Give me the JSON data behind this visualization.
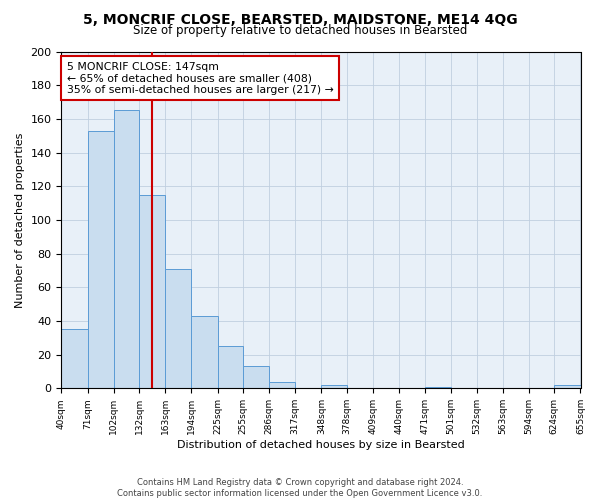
{
  "title": "5, MONCRIF CLOSE, BEARSTED, MAIDSTONE, ME14 4QG",
  "subtitle": "Size of property relative to detached houses in Bearsted",
  "xlabel": "Distribution of detached houses by size in Bearsted",
  "ylabel": "Number of detached properties",
  "bin_edges": [
    40,
    71,
    102,
    132,
    163,
    194,
    225,
    255,
    286,
    317,
    348,
    378,
    409,
    440,
    471,
    501,
    532,
    563,
    594,
    624,
    655
  ],
  "bin_heights": [
    35,
    153,
    165,
    115,
    71,
    43,
    25,
    13,
    4,
    0,
    2,
    0,
    0,
    0,
    1,
    0,
    0,
    0,
    0,
    2
  ],
  "bar_color": "#c9ddef",
  "bar_edge_color": "#5b9bd5",
  "vline_color": "#cc0000",
  "vline_x": 147,
  "annotation_text": "5 MONCRIF CLOSE: 147sqm\n← 65% of detached houses are smaller (408)\n35% of semi-detached houses are larger (217) →",
  "annotation_box_color": "#ffffff",
  "annotation_box_edge_color": "#cc0000",
  "ylim": [
    0,
    200
  ],
  "yticks": [
    0,
    20,
    40,
    60,
    80,
    100,
    120,
    140,
    160,
    180,
    200
  ],
  "tick_labels": [
    "40sqm",
    "71sqm",
    "102sqm",
    "132sqm",
    "163sqm",
    "194sqm",
    "225sqm",
    "255sqm",
    "286sqm",
    "317sqm",
    "348sqm",
    "378sqm",
    "409sqm",
    "440sqm",
    "471sqm",
    "501sqm",
    "532sqm",
    "563sqm",
    "594sqm",
    "624sqm",
    "655sqm"
  ],
  "footer_text": "Contains HM Land Registry data © Crown copyright and database right 2024.\nContains public sector information licensed under the Open Government Licence v3.0.",
  "background_color": "#ffffff",
  "axes_background": "#e8f0f8",
  "grid_color": "#c0cfe0"
}
